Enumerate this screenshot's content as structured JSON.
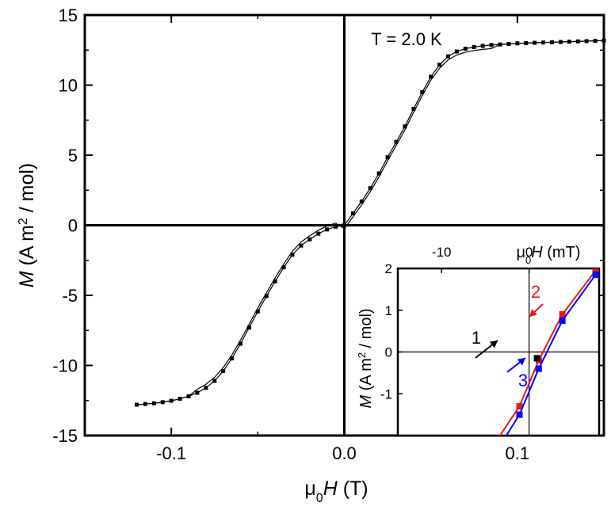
{
  "chart_data": [
    {
      "type": "line",
      "title": "",
      "annotation": "T = 2.0 K",
      "xlabel_parts": [
        "μ",
        "0",
        "H",
        " (T)"
      ],
      "ylabel_parts": [
        "M",
        " (A m",
        "2",
        " / mol)"
      ],
      "xlim": [
        -0.15,
        0.15
      ],
      "ylim": [
        -15,
        15
      ],
      "x_ticks": [
        -0.1,
        0.0,
        0.1
      ],
      "x_tick_labels": [
        "-0.1",
        "0.0",
        "0.1"
      ],
      "y_ticks": [
        -15,
        -10,
        -5,
        0,
        5,
        10,
        15
      ],
      "y_tick_labels": [
        "-15",
        "-10",
        "-5",
        "0",
        "5",
        "10",
        "15"
      ],
      "series": [
        {
          "marker": "square",
          "color": "#000000",
          "x": [
            -0.12,
            -0.115,
            -0.11,
            -0.105,
            -0.1,
            -0.095,
            -0.09,
            -0.085,
            -0.08,
            -0.075,
            -0.07,
            -0.065,
            -0.06,
            -0.055,
            -0.05,
            -0.045,
            -0.04,
            -0.035,
            -0.03,
            -0.025,
            -0.02,
            -0.015,
            -0.01,
            -0.005,
            0.0,
            0.005,
            0.01,
            0.015,
            0.02,
            0.025,
            0.03,
            0.035,
            0.04,
            0.045,
            0.05,
            0.055,
            0.06,
            0.065,
            0.07,
            0.075,
            0.08,
            0.085,
            0.09,
            0.095,
            0.1,
            0.105,
            0.11,
            0.115,
            0.12,
            0.125,
            0.13,
            0.135,
            0.14,
            0.145,
            0.15
          ],
          "y": [
            -12.8,
            -12.75,
            -12.7,
            -12.62,
            -12.52,
            -12.38,
            -12.2,
            -11.95,
            -11.6,
            -11.1,
            -10.4,
            -9.5,
            -8.45,
            -7.3,
            -6.15,
            -5.05,
            -4.0,
            -3.0,
            -2.1,
            -1.45,
            -1.0,
            -0.6,
            -0.3,
            -0.1,
            0.0,
            0.85,
            1.7,
            2.65,
            3.7,
            4.85,
            5.95,
            7.05,
            8.3,
            9.5,
            10.6,
            11.45,
            12.05,
            12.4,
            12.6,
            12.72,
            12.8,
            12.86,
            12.9,
            12.94,
            12.98,
            13.0,
            13.02,
            13.04,
            13.06,
            13.08,
            13.1,
            13.12,
            13.14,
            13.16,
            13.18
          ]
        }
      ]
    },
    {
      "type": "line",
      "title": "",
      "inset": true,
      "xlabel_parts": [
        "μ",
        "0",
        "H",
        " (mT)"
      ],
      "ylabel_parts": [
        "M",
        " (A m",
        "2",
        " / mol)"
      ],
      "xlim": [
        -15,
        8
      ],
      "ylim": [
        -2,
        2
      ],
      "x_ticks": [
        -10,
        0
      ],
      "x_tick_labels": [
        "-10",
        "0"
      ],
      "y_ticks": [
        -1,
        0,
        1,
        2
      ],
      "y_tick_labels": [
        "-1",
        "0",
        "1",
        "2"
      ],
      "series": [
        {
          "color": "#e8191b",
          "label": "2",
          "x": [
            -6.5,
            -1.1,
            1.1,
            3.8,
            7.6
          ],
          "y": [
            -3.0,
            -1.3,
            -0.2,
            0.9,
            1.95
          ]
        },
        {
          "color": "#0000ff",
          "label": "3",
          "x": [
            -6.5,
            -1.1,
            1.1,
            3.8,
            7.6
          ],
          "y": [
            -3.3,
            -1.5,
            -0.4,
            0.75,
            1.85
          ]
        },
        {
          "color": "#000000",
          "label": "1",
          "x": [
            0.9
          ],
          "y": [
            -0.15
          ]
        }
      ],
      "markers": [
        {
          "label": "1",
          "color": "#000000"
        },
        {
          "label": "2",
          "color": "#e8191b"
        },
        {
          "label": "3",
          "color": "#0000ff"
        }
      ]
    }
  ]
}
